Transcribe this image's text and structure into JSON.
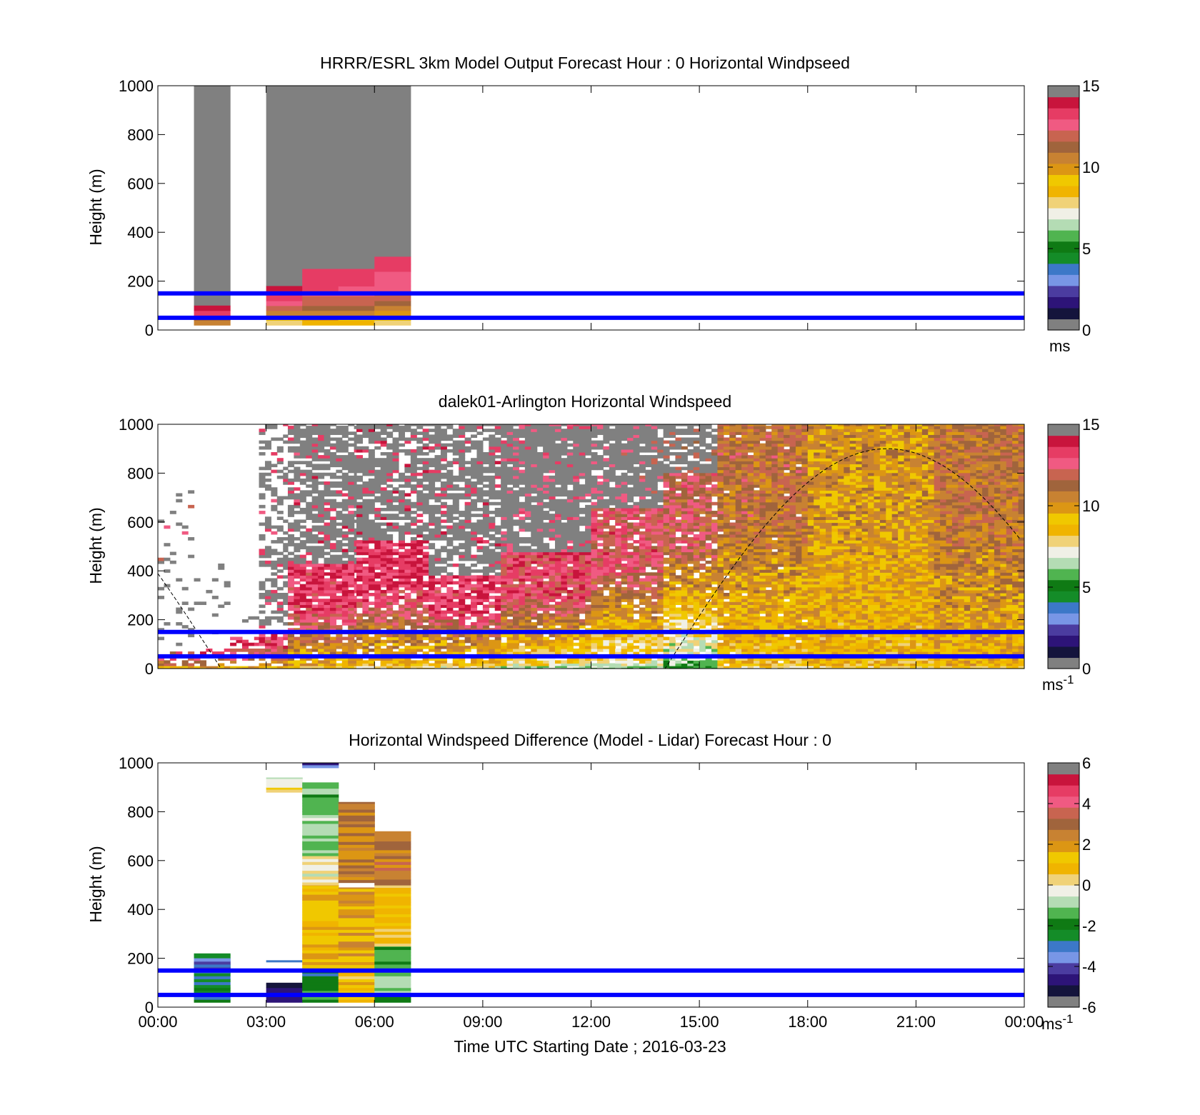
{
  "colors": {
    "background": "#ffffff",
    "axis": "#000000",
    "missing_gray": "#808080",
    "reference_line": "#0000ff",
    "solar_curve": "#000000"
  },
  "x_axis": {
    "xlabel": "Time UTC  Starting Date ; 2016-03-23",
    "ticks": [
      "00:00",
      "03:00",
      "06:00",
      "09:00",
      "12:00",
      "15:00",
      "18:00",
      "21:00",
      "00:00"
    ],
    "xlim_hours": [
      0,
      24
    ]
  },
  "chart_data": [
    {
      "type": "heatmap",
      "title": "HRRR/ESRL 3km Model Output   Forecast Hour : 0 Horizontal Windpseed",
      "ylabel": "Height (m)",
      "y_ticks": [
        "0",
        "200",
        "400",
        "600",
        "800",
        "1000"
      ],
      "ylim": [
        0,
        1000
      ],
      "reference_lines_m": [
        50,
        150
      ],
      "colorbar": {
        "ticks": [
          "0",
          "5",
          "10",
          "15"
        ],
        "range": [
          0,
          15
        ],
        "unit": "ms",
        "unit_superscript": "",
        "colors": [
          "#808080",
          "#14143c",
          "#2d1478",
          "#4b3ca0",
          "#7896e6",
          "#3c78c8",
          "#148c28",
          "#0f7a14",
          "#50b450",
          "#b4dcb4",
          "#f0f0e6",
          "#f0d278",
          "#f0b400",
          "#f0c800",
          "#dc9614",
          "#c88232",
          "#a0643c",
          "#c86450",
          "#f05a82",
          "#e63c64",
          "#c8143c",
          "#808080"
        ]
      },
      "columns": [
        {
          "t0": 1,
          "t1": 2,
          "top": 1000,
          "bottom": 20,
          "gray_above": 100,
          "profile": [
            [
              20,
              10.8
            ],
            [
              40,
              11.6
            ],
            [
              60,
              13.6
            ],
            [
              80,
              14.3
            ],
            [
              100,
              14.5
            ]
          ]
        },
        {
          "t0": 3,
          "t1": 4,
          "top": 1000,
          "bottom": 20,
          "gray_above": 180,
          "profile": [
            [
              20,
              8.0
            ],
            [
              40,
              9.2
            ],
            [
              60,
              10.7
            ],
            [
              80,
              12.0
            ],
            [
              100,
              13.0
            ],
            [
              120,
              13.5
            ],
            [
              140,
              13.8
            ],
            [
              160,
              14.3
            ],
            [
              180,
              14.5
            ]
          ]
        },
        {
          "t0": 4,
          "t1": 5,
          "top": 1000,
          "bottom": 20,
          "gray_above": 250,
          "profile": [
            [
              20,
              8.6
            ],
            [
              40,
              9.8
            ],
            [
              60,
              10.7
            ],
            [
              80,
              11.6
            ],
            [
              100,
              12.2
            ],
            [
              120,
              12.7
            ],
            [
              140,
              13.2
            ],
            [
              160,
              13.6
            ],
            [
              180,
              13.9
            ],
            [
              200,
              14.0
            ],
            [
              220,
              14.2
            ],
            [
              250,
              14.4
            ]
          ]
        },
        {
          "t0": 5,
          "t1": 6,
          "top": 1000,
          "bottom": 20,
          "gray_above": 250,
          "profile": [
            [
              20,
              8.3
            ],
            [
              40,
              9.5
            ],
            [
              60,
              10.5
            ],
            [
              80,
              11.3
            ],
            [
              100,
              12.0
            ],
            [
              120,
              12.6
            ],
            [
              140,
              13.0
            ],
            [
              160,
              13.4
            ],
            [
              180,
              13.7
            ],
            [
              200,
              13.9
            ],
            [
              220,
              14.1
            ],
            [
              250,
              14.3
            ]
          ]
        },
        {
          "t0": 6,
          "t1": 7,
          "top": 1000,
          "bottom": 20,
          "gray_above": 300,
          "profile": [
            [
              20,
              7.6
            ],
            [
              40,
              9.0
            ],
            [
              60,
              10.0
            ],
            [
              80,
              10.8
            ],
            [
              100,
              11.5
            ],
            [
              120,
              12.0
            ],
            [
              140,
              12.4
            ],
            [
              160,
              12.8
            ],
            [
              180,
              13.1
            ],
            [
              200,
              13.3
            ],
            [
              240,
              13.5
            ],
            [
              270,
              13.9
            ],
            [
              300,
              14.4
            ]
          ]
        }
      ]
    },
    {
      "type": "heatmap",
      "title": "dalek01-Arlington  Horizontal Windspeed",
      "ylabel": "Height (m)",
      "y_ticks": [
        "0",
        "200",
        "400",
        "600",
        "800",
        "1000"
      ],
      "ylim": [
        0,
        1000
      ],
      "reference_lines_m": [
        50,
        150
      ],
      "solar_elevation_curve": true,
      "colorbar": {
        "ticks": [
          "0",
          "5",
          "10",
          "15"
        ],
        "range": [
          0,
          15
        ],
        "unit": "ms",
        "unit_superscript": "-1",
        "colors": [
          "#808080",
          "#14143c",
          "#2d1478",
          "#4b3ca0",
          "#7896e6",
          "#3c78c8",
          "#148c28",
          "#0f7a14",
          "#50b450",
          "#b4dcb4",
          "#f0f0e6",
          "#f0d278",
          "#f0b400",
          "#f0c800",
          "#dc9614",
          "#c88232",
          "#a0643c",
          "#c86450",
          "#f05a82",
          "#e63c64",
          "#c8143c",
          "#808080"
        ]
      },
      "segments": [
        {
          "t0": 0.0,
          "t1": 1.0,
          "signal_top": 60,
          "gray_top": 720,
          "sparse": 0.9,
          "base": 12.8,
          "near_surface": 10.5
        },
        {
          "t0": 1.0,
          "t1": 2.0,
          "signal_top": 80,
          "gray_top": 420,
          "sparse": 0.9,
          "base": 13.2,
          "near_surface": 11.0
        },
        {
          "t0": 2.0,
          "t1": 2.8,
          "signal_top": 120,
          "gray_top": 220,
          "sparse": 0.9,
          "base": 13.5,
          "near_surface": 11.5
        },
        {
          "t0": 2.8,
          "t1": 3.6,
          "signal_top": 150,
          "gray_top": 1000,
          "sparse": 0.55,
          "base": 13.8,
          "near_surface": 10.0
        },
        {
          "t0": 3.6,
          "t1": 5.5,
          "signal_top": 420,
          "gray_top": 1000,
          "sparse": 0.25,
          "base": 13.9,
          "near_surface": 9.5
        },
        {
          "t0": 5.5,
          "t1": 7.5,
          "signal_top": 520,
          "gray_top": 1000,
          "sparse": 0.3,
          "base": 14.1,
          "near_surface": 9.0
        },
        {
          "t0": 7.5,
          "t1": 9.5,
          "signal_top": 380,
          "gray_top": 1000,
          "sparse": 0.25,
          "base": 13.9,
          "near_surface": 8.5
        },
        {
          "t0": 9.5,
          "t1": 12.0,
          "signal_top": 470,
          "gray_top": 1000,
          "sparse": 0.1,
          "base": 13.3,
          "near_surface": 7.5
        },
        {
          "t0": 12.0,
          "t1": 14.0,
          "signal_top": 650,
          "gray_top": 1000,
          "sparse": 0.15,
          "base": 13.0,
          "near_surface": 7.0
        },
        {
          "t0": 14.0,
          "t1": 15.5,
          "signal_top": 800,
          "gray_top": 1000,
          "sparse": 0.2,
          "base": 12.3,
          "near_surface": 6.0
        },
        {
          "t0": 15.5,
          "t1": 18.0,
          "signal_top": 1000,
          "gray_top": 1000,
          "sparse": 0.05,
          "base": 11.5,
          "near_surface": 8.8
        },
        {
          "t0": 18.0,
          "t1": 21.5,
          "signal_top": 1000,
          "gray_top": 1000,
          "sparse": 0.0,
          "base": 10.3,
          "near_surface": 9.2
        },
        {
          "t0": 21.5,
          "t1": 24.0,
          "signal_top": 1000,
          "gray_top": 1000,
          "sparse": 0.0,
          "base": 11.4,
          "near_surface": 9.5
        }
      ]
    },
    {
      "type": "heatmap",
      "title": "Horizontal Windspeed Difference (Model - Lidar) Forecast Hour : 0",
      "ylabel": "Height (m)",
      "y_ticks": [
        "0",
        "200",
        "400",
        "600",
        "800",
        "1000"
      ],
      "ylim": [
        0,
        1000
      ],
      "reference_lines_m": [
        50,
        150
      ],
      "colorbar": {
        "ticks": [
          "-6",
          "-4",
          "-2",
          "0",
          "2",
          "4",
          "6"
        ],
        "range": [
          -6,
          6
        ],
        "unit": "ms",
        "unit_superscript": "-1",
        "colors": [
          "#808080",
          "#14143c",
          "#2d1478",
          "#4b3ca0",
          "#7896e6",
          "#3c78c8",
          "#148c28",
          "#0f7a14",
          "#50b450",
          "#b4dcb4",
          "#f0f0e6",
          "#f0d278",
          "#f0b400",
          "#f0c800",
          "#dc9614",
          "#c88232",
          "#a0643c",
          "#c86450",
          "#f05a82",
          "#e63c64",
          "#c8143c",
          "#808080"
        ]
      },
      "columns": [
        {
          "t0": 1,
          "t1": 2,
          "cells": [
            [
              20,
              200,
              -2.8
            ],
            [
              200,
              220,
              -2.2
            ],
            [
              140,
              200,
              -3.8
            ]
          ]
        },
        {
          "t0": 3,
          "t1": 4,
          "cells": [
            [
              20,
              100,
              -5.2
            ],
            [
              185,
              192,
              -2.6
            ],
            [
              880,
              900,
              0.8
            ],
            [
              900,
              940,
              -0.8
            ]
          ]
        },
        {
          "t0": 4,
          "t1": 5,
          "cells": [
            [
              20,
              80,
              -1.5
            ],
            [
              80,
              150,
              -2.3
            ],
            [
              150,
              500,
              1.6
            ],
            [
              500,
              620,
              0.0
            ],
            [
              620,
              920,
              -1.2
            ],
            [
              980,
              1000,
              -4.4
            ]
          ]
        },
        {
          "t0": 5,
          "t1": 6,
          "cells": [
            [
              20,
              150,
              1.3
            ],
            [
              150,
              490,
              2.0
            ],
            [
              510,
              840,
              2.6
            ]
          ]
        },
        {
          "t0": 6,
          "t1": 7,
          "cells": [
            [
              20,
              250,
              -1.6
            ],
            [
              250,
              500,
              0.8
            ],
            [
              500,
              720,
              3.0
            ]
          ]
        }
      ]
    }
  ]
}
